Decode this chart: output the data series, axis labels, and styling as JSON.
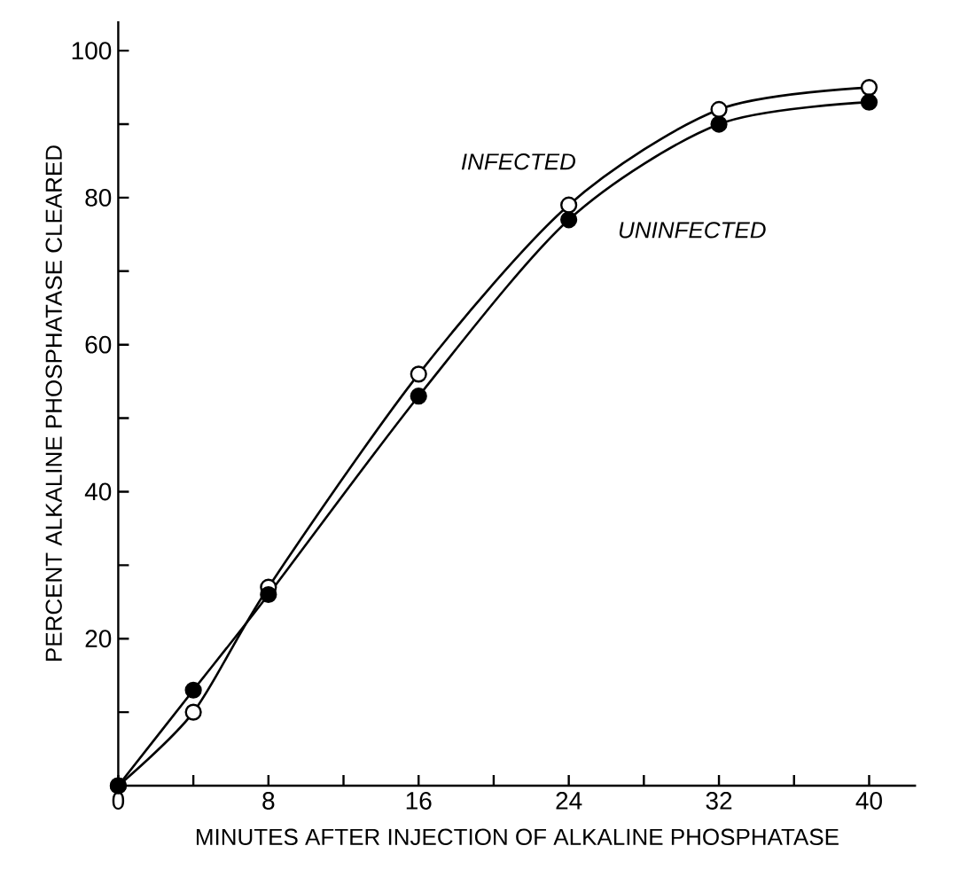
{
  "chart_data": {
    "type": "line",
    "xlabel": "MINUTES AFTER INJECTION OF ALKALINE PHOSPHATASE",
    "ylabel": "PERCENT ALKALINE PHOSPHATASE CLEARED",
    "x": [
      0,
      4,
      8,
      16,
      24,
      32,
      40
    ],
    "series": [
      {
        "name": "INFECTED",
        "color": "#000000",
        "values": [
          0,
          10,
          27,
          56,
          79,
          92,
          95
        ]
      },
      {
        "name": "UNINFECTED",
        "color": "#000000",
        "values": [
          0,
          13,
          26,
          53,
          77,
          90,
          93
        ]
      }
    ],
    "xlim": [
      0,
      42.5
    ],
    "ylim": [
      0,
      104
    ],
    "xticks": [
      0,
      {
        "value": 4,
        "label": null
      },
      8,
      {
        "value": 12,
        "label": null
      },
      16,
      {
        "value": 20,
        "label": null
      },
      24,
      {
        "value": 28,
        "label": null
      },
      32,
      {
        "value": 36,
        "label": null
      },
      40
    ],
    "yticks": [
      {
        "value": 10,
        "label": null
      },
      20,
      {
        "value": 30,
        "label": null
      },
      40,
      {
        "value": 50,
        "label": null
      },
      60,
      {
        "value": 70,
        "label": null
      },
      80,
      {
        "value": 90,
        "label": null
      },
      100
    ],
    "marker": "circle",
    "line_style": "solid",
    "grid": false,
    "legend": false
  }
}
